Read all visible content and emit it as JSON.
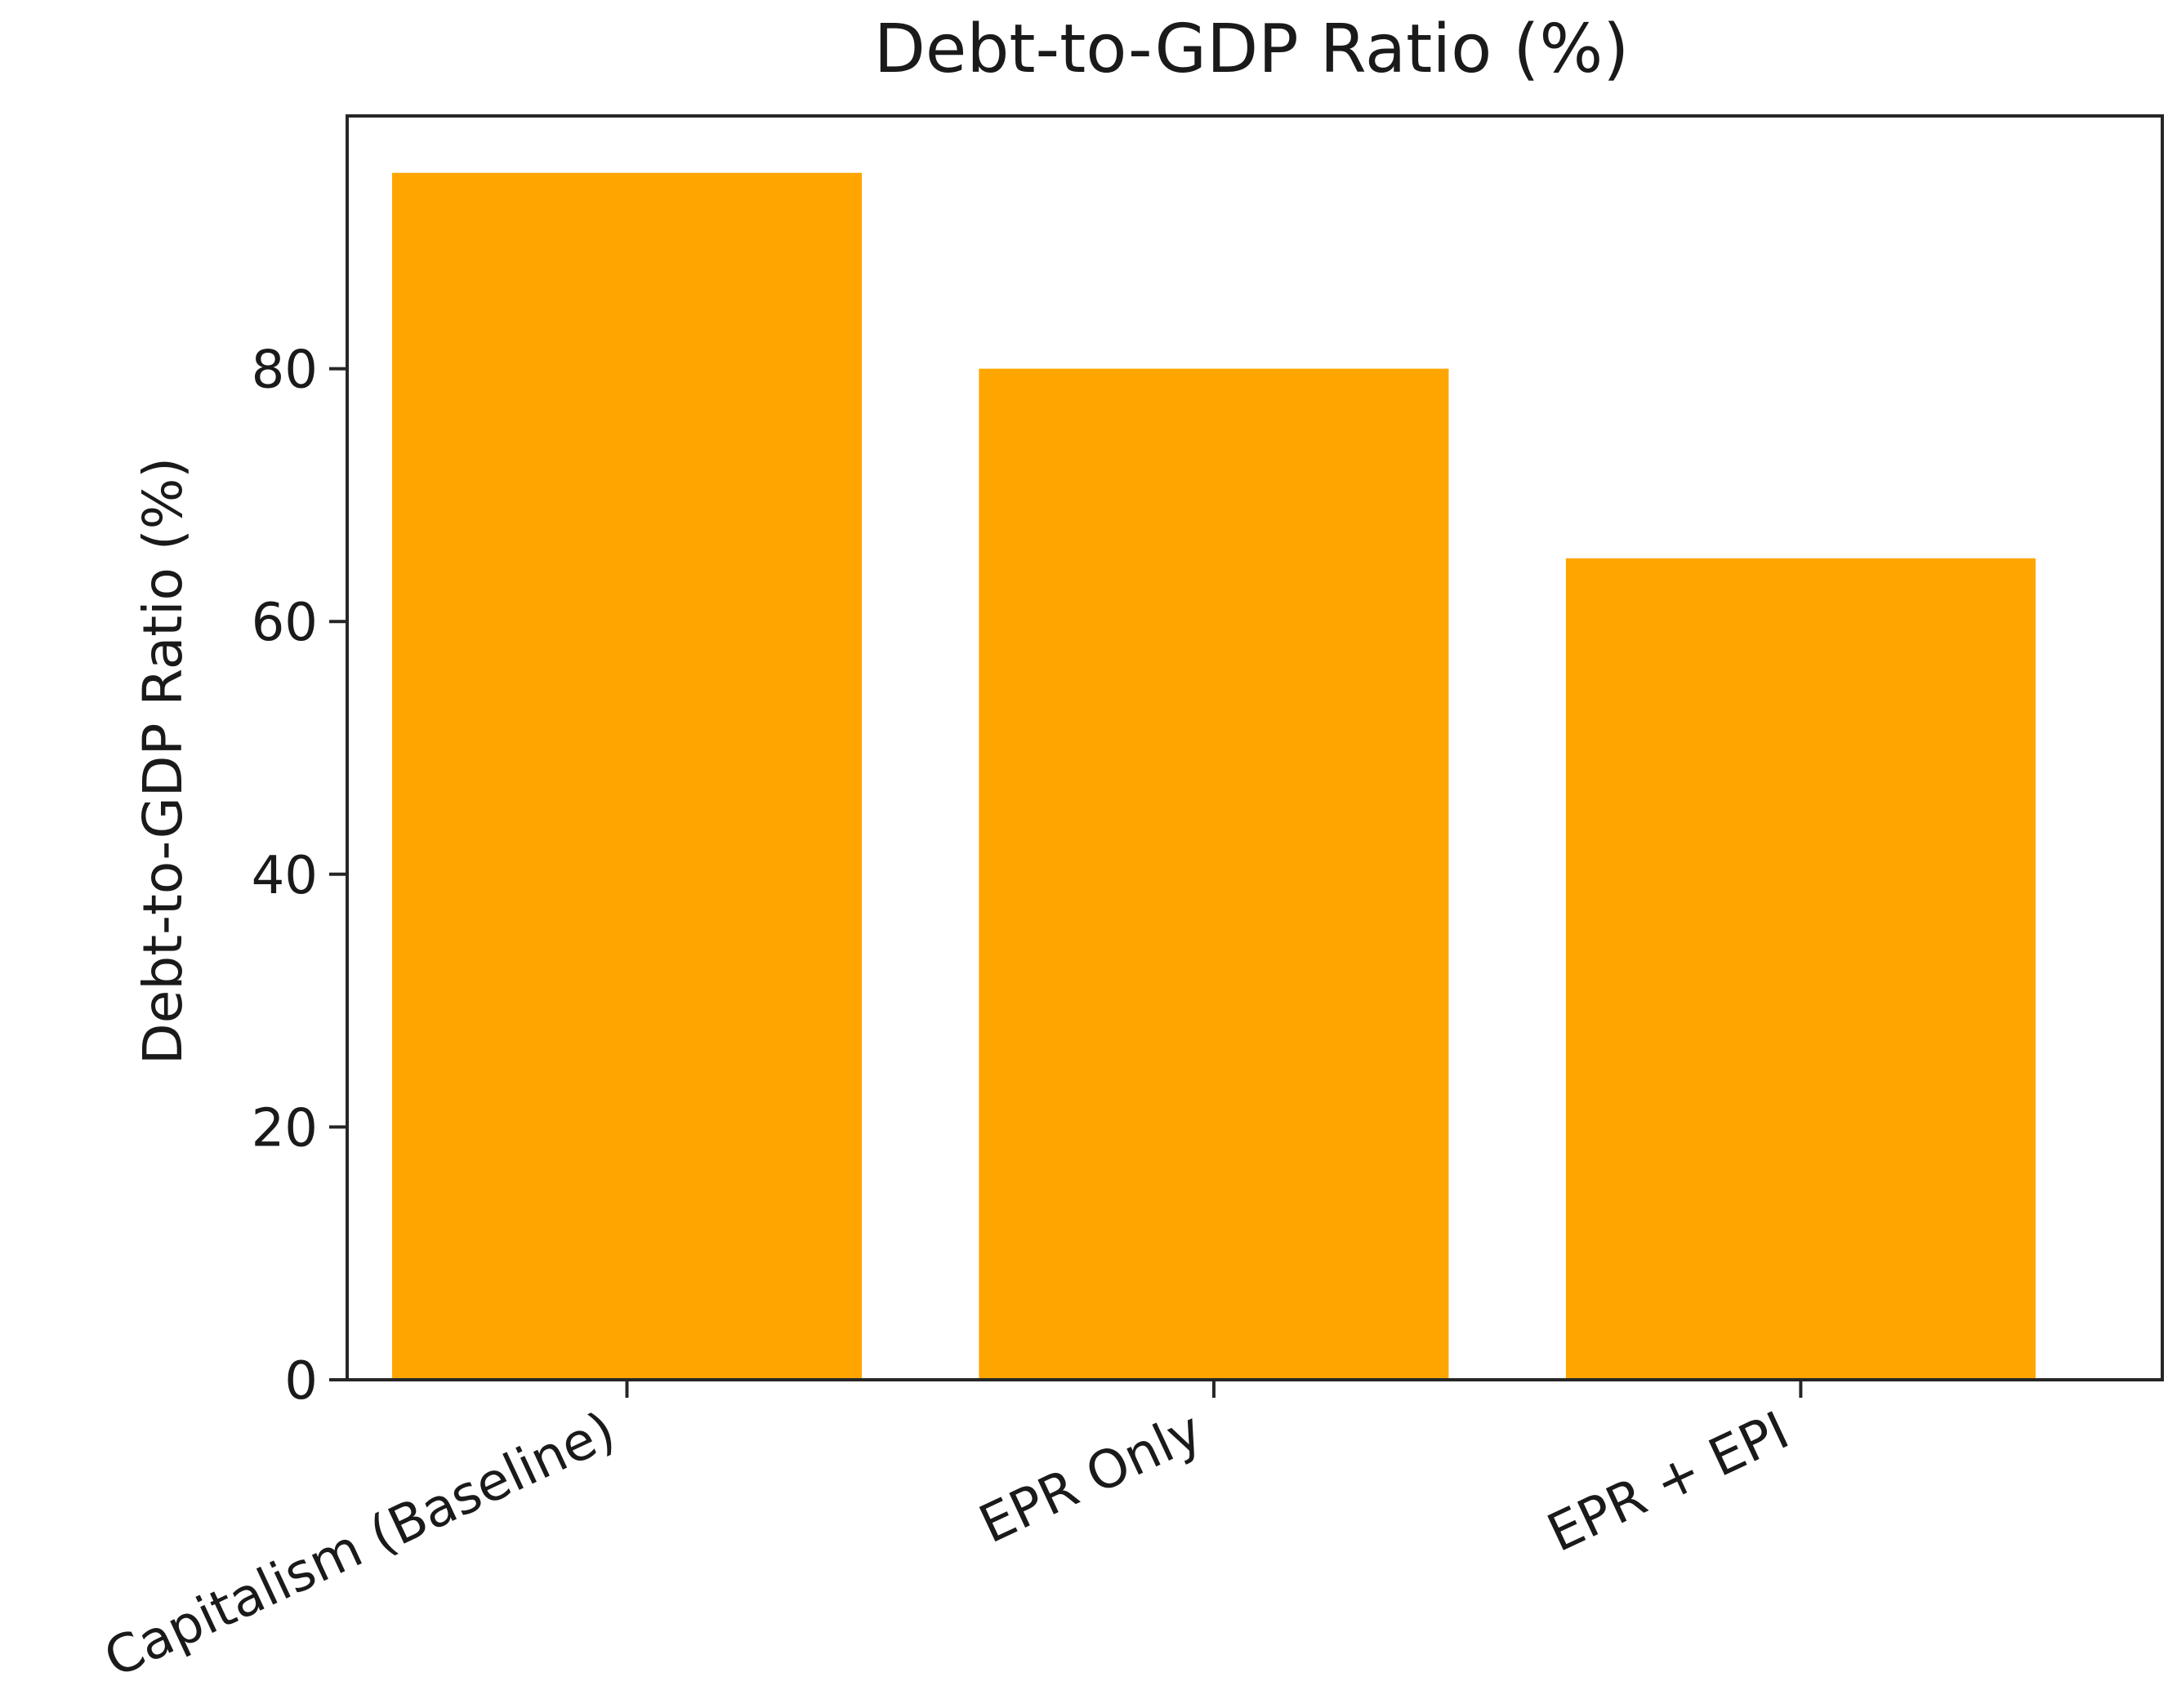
{
  "chart_data": {
    "type": "bar",
    "title": "Debt-to-GDP Ratio (%)",
    "xlabel": "",
    "ylabel": "Debt-to-GDP Ratio (%)",
    "categories": [
      "Capitalism (Baseline)",
      "EPR Only",
      "EPR + EPI"
    ],
    "values": [
      95.5,
      80.0,
      65.0
    ],
    "yticks": [
      0,
      20,
      40,
      60,
      80
    ],
    "ylim": [
      0,
      100
    ],
    "bar_color": "#FFA500",
    "grid": false,
    "legend": "none"
  }
}
